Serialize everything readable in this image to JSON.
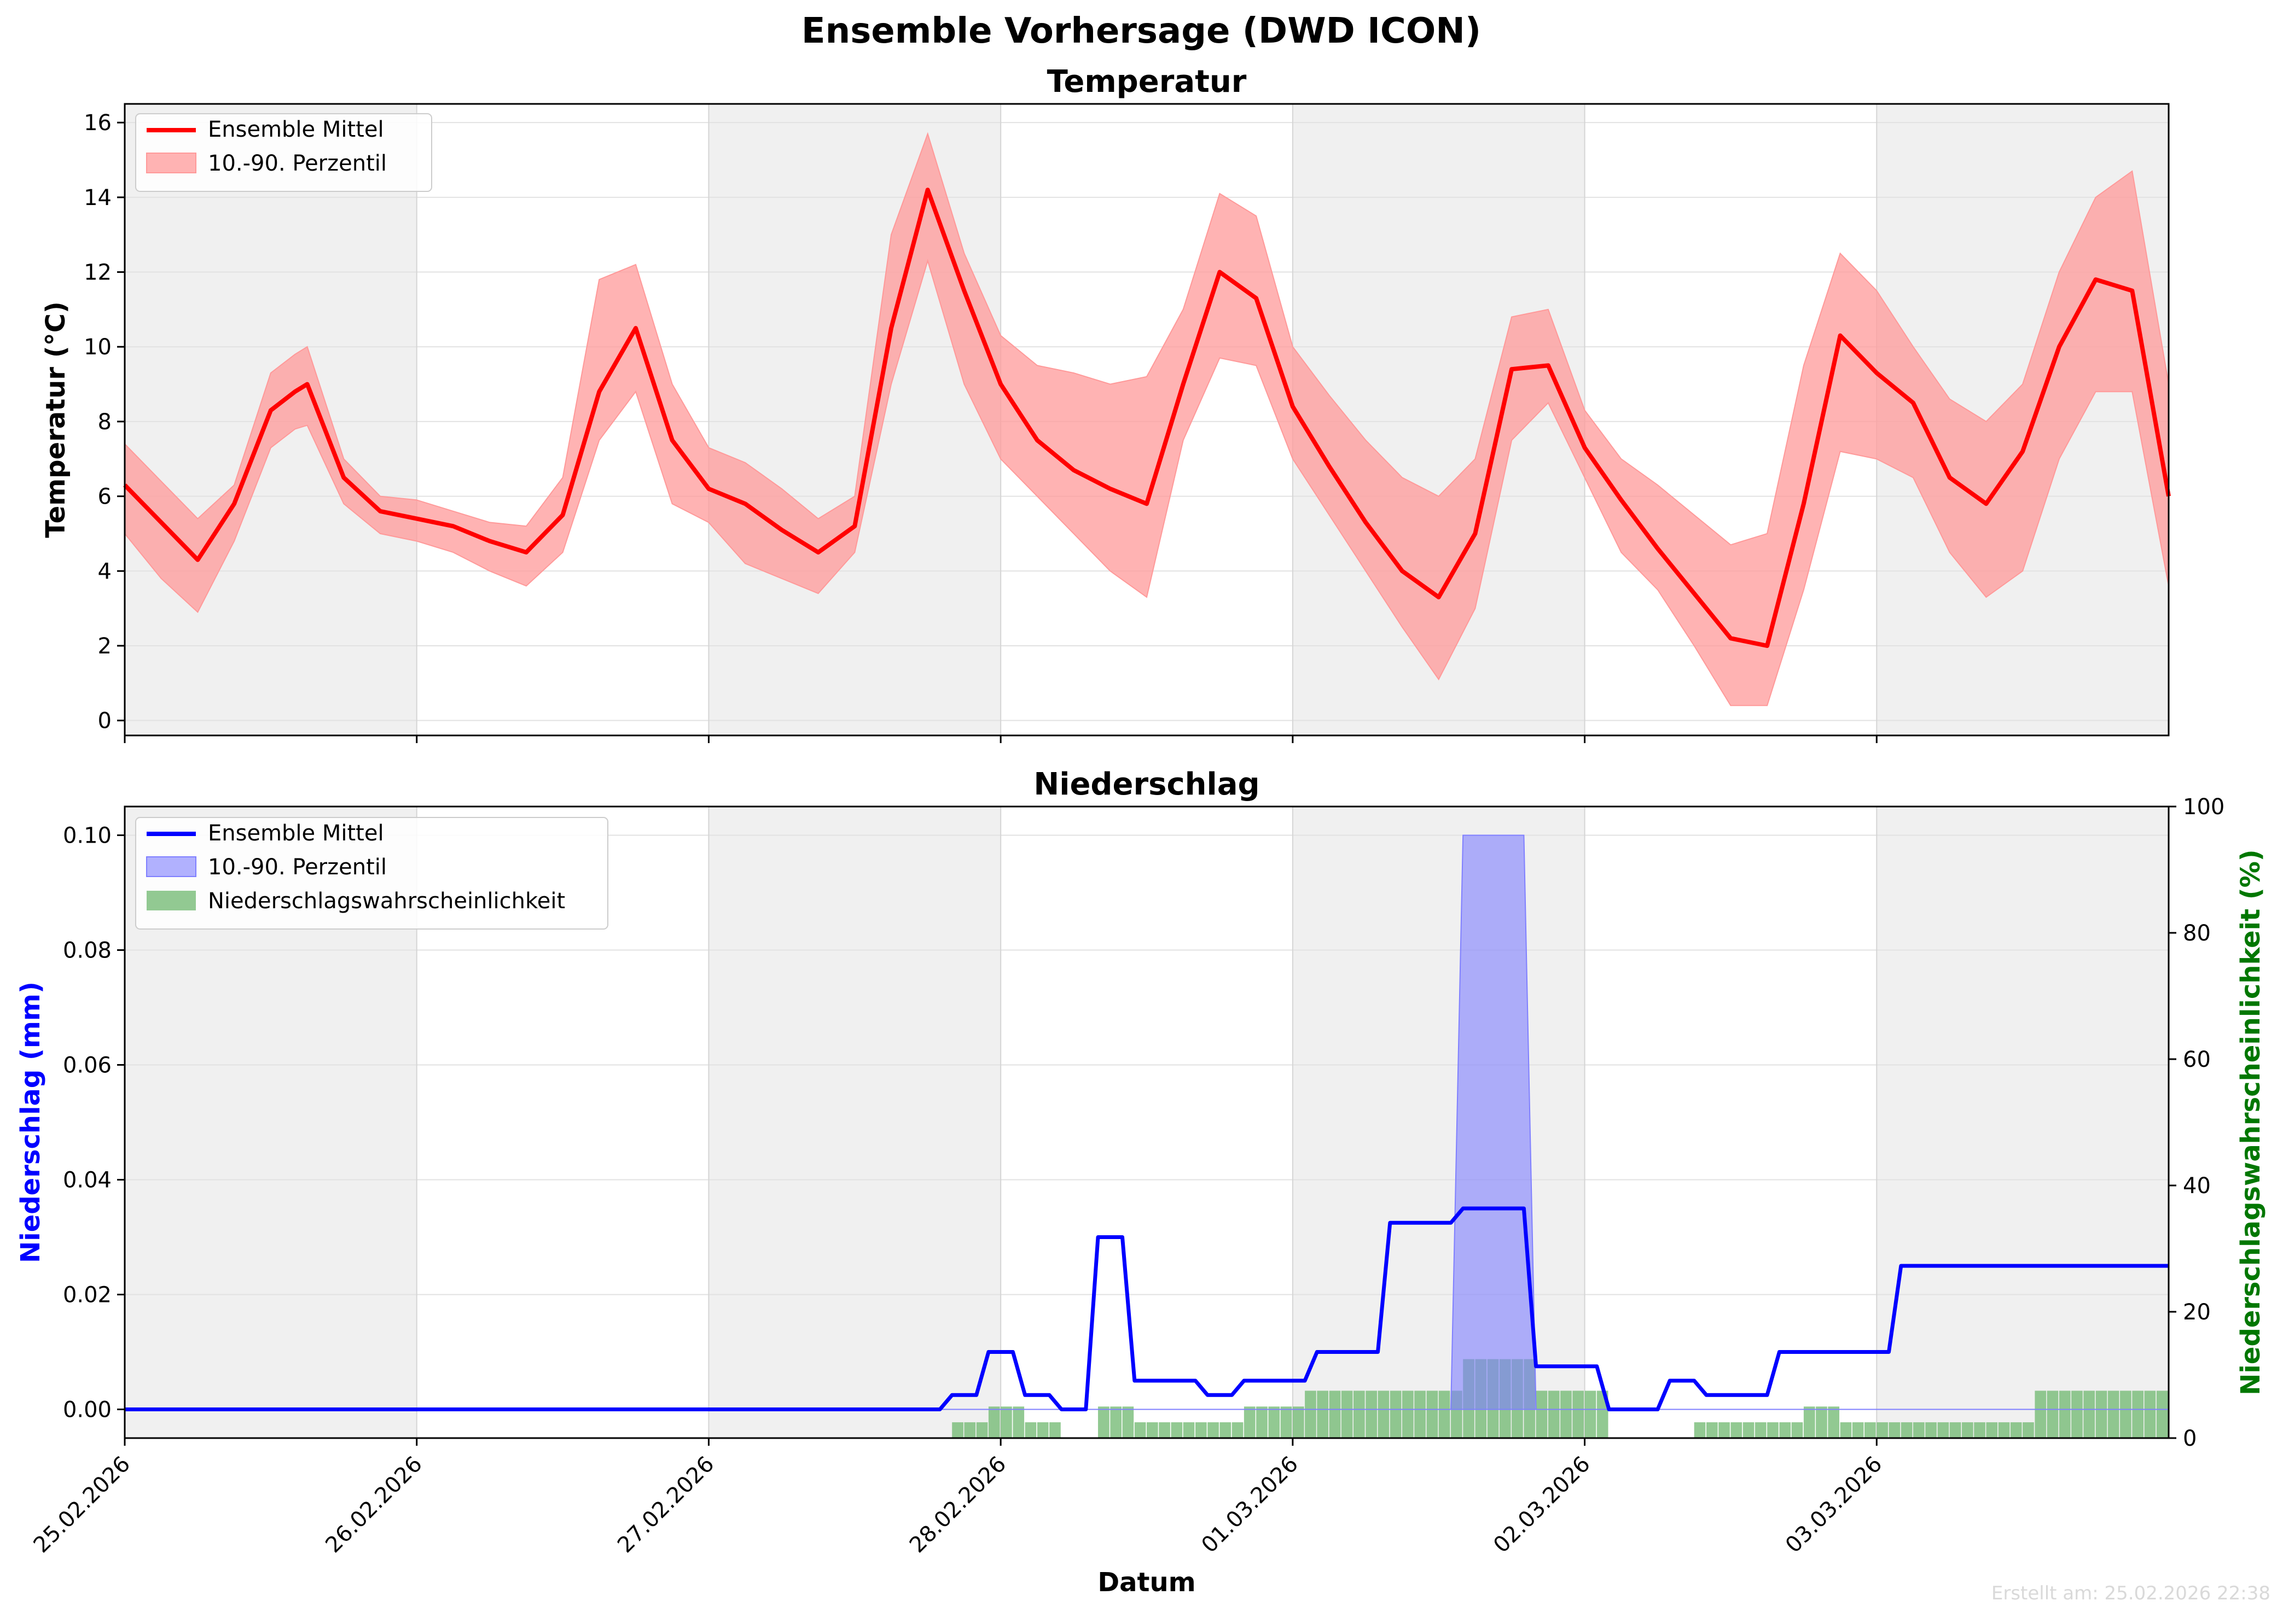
{
  "suptitle": "Ensemble Vorhersage (DWD ICON)",
  "footer": "Erstellt am: 25.02.2026 22:38",
  "xlabel": "Datum",
  "x_tick_labels": [
    "25.02.2026",
    "26.02.2026",
    "27.02.2026",
    "28.02.2026",
    "01.03.2026",
    "02.03.2026",
    "03.03.2026"
  ],
  "colors": {
    "temp_mean": "#ff0000",
    "temp_band": "#ff9999",
    "precip_mean": "#0000ff",
    "precip_band": "#7f7fff",
    "prob_bar": "#77bb77",
    "right_axis": "#007700",
    "shade": "#f0f0f0"
  },
  "chart_data": [
    {
      "type": "line",
      "title": "Temperatur",
      "xlabel": "",
      "ylabel": "Temperatur (°C)",
      "x_unit": "hours since 25.02.2026 00:00",
      "xlim": [
        0,
        168
      ],
      "ylim": [
        -0.4,
        16.5
      ],
      "yticks": [
        0,
        2,
        4,
        6,
        8,
        10,
        12,
        14,
        16
      ],
      "grid": true,
      "legend": "top-left",
      "series": [
        {
          "name": "Ensemble Mittel",
          "x": [
            0,
            3,
            6,
            9,
            12,
            14,
            15,
            18,
            21,
            24,
            27,
            30,
            33,
            36,
            39,
            42,
            45,
            48,
            51,
            54,
            57,
            60,
            63,
            66,
            69,
            72,
            75,
            78,
            81,
            84,
            87,
            90,
            93,
            96,
            99,
            102,
            105,
            108,
            111,
            114,
            117,
            120,
            123,
            126,
            129,
            132,
            135,
            138,
            141,
            144,
            147,
            150,
            153,
            156,
            159,
            162,
            165,
            168
          ],
          "values": [
            6.3,
            5.3,
            4.3,
            5.8,
            8.3,
            8.8,
            9.0,
            6.5,
            5.6,
            5.4,
            5.2,
            4.8,
            4.5,
            5.5,
            8.8,
            10.5,
            7.5,
            6.2,
            5.8,
            5.1,
            4.5,
            5.2,
            10.5,
            14.2,
            11.5,
            9.0,
            7.5,
            6.7,
            6.2,
            5.8,
            9.0,
            12.0,
            11.3,
            8.4,
            6.8,
            5.3,
            4.0,
            3.3,
            5.0,
            9.4,
            9.5,
            7.3,
            5.9,
            4.6,
            3.4,
            2.2,
            2.0,
            5.8,
            10.3,
            9.3,
            8.5,
            6.5,
            5.8,
            7.2,
            10.0,
            11.8,
            11.5,
            6.0
          ]
        },
        {
          "name": "10.-90. Perzentil",
          "x": [
            0,
            3,
            6,
            9,
            12,
            14,
            15,
            18,
            21,
            24,
            27,
            30,
            33,
            36,
            39,
            42,
            45,
            48,
            51,
            54,
            57,
            60,
            63,
            66,
            69,
            72,
            75,
            78,
            81,
            84,
            87,
            90,
            93,
            96,
            99,
            102,
            105,
            108,
            111,
            114,
            117,
            120,
            123,
            126,
            129,
            132,
            135,
            138,
            141,
            144,
            147,
            150,
            153,
            156,
            159,
            162,
            165,
            168
          ],
          "lower": [
            5.0,
            3.8,
            2.9,
            4.8,
            7.3,
            7.8,
            7.9,
            5.8,
            5.0,
            4.8,
            4.5,
            4.0,
            3.6,
            4.5,
            7.5,
            8.8,
            5.8,
            5.3,
            4.2,
            3.8,
            3.4,
            4.5,
            9.0,
            12.3,
            9.0,
            7.0,
            6.0,
            5.0,
            4.0,
            3.3,
            7.5,
            9.7,
            9.5,
            7.0,
            5.5,
            4.0,
            2.5,
            1.1,
            3.0,
            7.5,
            8.5,
            6.5,
            4.5,
            3.5,
            2.0,
            0.4,
            0.4,
            3.5,
            7.2,
            7.0,
            6.5,
            4.5,
            3.3,
            4.0,
            7.0,
            8.8,
            8.8,
            3.6
          ]
        },
        {
          "name": "",
          "x": [
            0,
            3,
            6,
            9,
            12,
            14,
            15,
            18,
            21,
            24,
            27,
            30,
            33,
            36,
            39,
            42,
            45,
            48,
            51,
            54,
            57,
            60,
            63,
            66,
            69,
            72,
            75,
            78,
            81,
            84,
            87,
            90,
            93,
            96,
            99,
            102,
            105,
            108,
            111,
            114,
            117,
            120,
            123,
            126,
            129,
            132,
            135,
            138,
            141,
            144,
            147,
            150,
            153,
            156,
            159,
            162,
            165,
            168
          ],
          "upper": [
            7.4,
            6.4,
            5.4,
            6.3,
            9.3,
            9.8,
            10.0,
            7.0,
            6.0,
            5.9,
            5.6,
            5.3,
            5.2,
            6.5,
            11.8,
            12.2,
            9.0,
            7.3,
            6.9,
            6.2,
            5.4,
            6.0,
            13.0,
            15.7,
            12.5,
            10.3,
            9.5,
            9.3,
            9.0,
            9.2,
            11.0,
            14.1,
            13.5,
            10.0,
            8.7,
            7.5,
            6.5,
            6.0,
            7.0,
            10.8,
            11.0,
            8.3,
            7.0,
            6.3,
            5.5,
            4.7,
            5.0,
            9.5,
            12.5,
            11.5,
            10.0,
            8.6,
            8.0,
            9.0,
            12.0,
            14.0,
            14.7,
            9.0
          ]
        }
      ]
    },
    {
      "type": "line",
      "title": "Niederschlag",
      "xlabel": "Datum",
      "ylabel": "Niederschlag (mm)",
      "y2label": "Niederschlagswahrscheinlichkeit (%)",
      "x_unit": "hours since 25.02.2026 00:00",
      "xlim": [
        0,
        168
      ],
      "ylim": [
        -0.005,
        0.105
      ],
      "yticks": [
        0.0,
        0.02,
        0.04,
        0.06,
        0.08,
        0.1
      ],
      "ytick_labels": [
        "0.00",
        "0.02",
        "0.04",
        "0.06",
        "0.08",
        "0.10"
      ],
      "y2lim": [
        0,
        100
      ],
      "y2ticks": [
        0,
        20,
        40,
        60,
        80,
        100
      ],
      "grid": true,
      "legend": "top-left",
      "series": [
        {
          "name": "Ensemble Mittel",
          "x": [
            0,
            67,
            68,
            70,
            71,
            73,
            74,
            76,
            77,
            79,
            80,
            82,
            83,
            88,
            89,
            91,
            92,
            97,
            98,
            103,
            104,
            109,
            110,
            115,
            116,
            121,
            122,
            126,
            127,
            129,
            130,
            135,
            136,
            145,
            146,
            157,
            158,
            169
          ],
          "values": [
            0,
            0,
            0.0025,
            0.0025,
            0.01,
            0.01,
            0.0025,
            0.0025,
            0,
            0,
            0.03,
            0.03,
            0.005,
            0.005,
            0.0025,
            0.0025,
            0.005,
            0.005,
            0.01,
            0.01,
            0.0325,
            0.0325,
            0.035,
            0.035,
            0.0075,
            0.0075,
            0,
            0,
            0.005,
            0.005,
            0.0025,
            0.0025,
            0.01,
            0.01,
            0.025,
            0.025,
            0.025,
            0.025
          ]
        },
        {
          "name": "10.-90. Perzentil",
          "x": [
            0,
            109,
            110,
            115,
            116,
            168
          ],
          "lower": [
            0,
            0,
            0,
            0,
            0,
            0
          ],
          "upper": [
            0,
            0,
            0.1,
            0.1,
            0,
            0
          ]
        },
        {
          "name": "Niederschlagswahrscheinlichkeit",
          "axis": "right",
          "kind": "bar",
          "x": [
            68,
            71,
            74,
            80,
            83,
            92,
            96,
            97,
            109,
            110,
            115,
            116,
            129,
            137,
            138,
            141,
            157
          ],
          "x_end": [
            71,
            74,
            77,
            83,
            92,
            96,
            97,
            109,
            110,
            115,
            116,
            122,
            137,
            138,
            141,
            157,
            168
          ],
          "values": [
            2.5,
            5,
            2.5,
            5,
            2.5,
            5,
            5,
            7.5,
            7.5,
            12.5,
            12.5,
            7.5,
            2.5,
            2.5,
            5,
            2.5,
            7.5
          ]
        }
      ]
    }
  ]
}
